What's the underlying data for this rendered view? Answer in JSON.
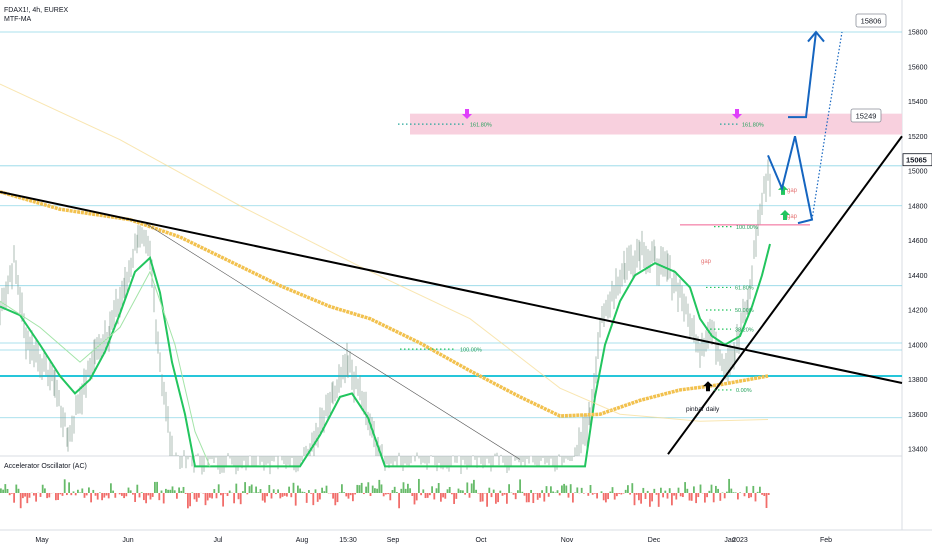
{
  "header": {
    "symbol_line": "FDAX1!, 4h, EUREX",
    "indicator_line": "MTF-MA"
  },
  "oscillator": {
    "title": "Accelerator Oscillator (AC)"
  },
  "colors": {
    "band": "#f8d0de",
    "hline": "#8fd6e6",
    "thick_hline": "#26c6da",
    "green_ma": "#22c55e",
    "gold_ma": "#f2c14e",
    "blue_path": "#1565c0",
    "magenta_arrow": "#e040fb",
    "up_arrow": "#22c55e"
  },
  "chart_data": {
    "type": "line",
    "title": "FDAX1!, 4h, EUREX",
    "ylim": [
      13300,
      15900
    ],
    "y_ticks": [
      13400,
      13600,
      13800,
      14000,
      14200,
      14400,
      14600,
      14800,
      15000,
      15200,
      15400,
      15600,
      15800
    ],
    "x_tick_labels": [
      "May",
      "Jun",
      "Jul",
      "Aug",
      "15:30",
      "Sep",
      "Oct",
      "Nov",
      "Dec",
      "Jan",
      "2023",
      "Feb"
    ],
    "price_labels": [
      "15806",
      "15249",
      "15065"
    ],
    "fib_levels": [
      {
        "label": "161.80%",
        "value": 15270
      },
      {
        "label": "161.80%",
        "value": 15270
      },
      {
        "label": "100.00%",
        "value": 14680
      },
      {
        "label": "100.00%",
        "value": 13975
      },
      {
        "label": "61.80%",
        "value": 14330
      },
      {
        "label": "50.00%",
        "value": 14200
      },
      {
        "label": "38.20%",
        "value": 14090
      },
      {
        "label": "0.00%",
        "value": 13740
      }
    ],
    "annotations": [
      "gap",
      "gap",
      "gap",
      "pinbar daily"
    ],
    "horizontal_levels": [
      15800,
      15240,
      15030,
      14800,
      14340,
      14010,
      13970,
      13820,
      13580
    ]
  }
}
